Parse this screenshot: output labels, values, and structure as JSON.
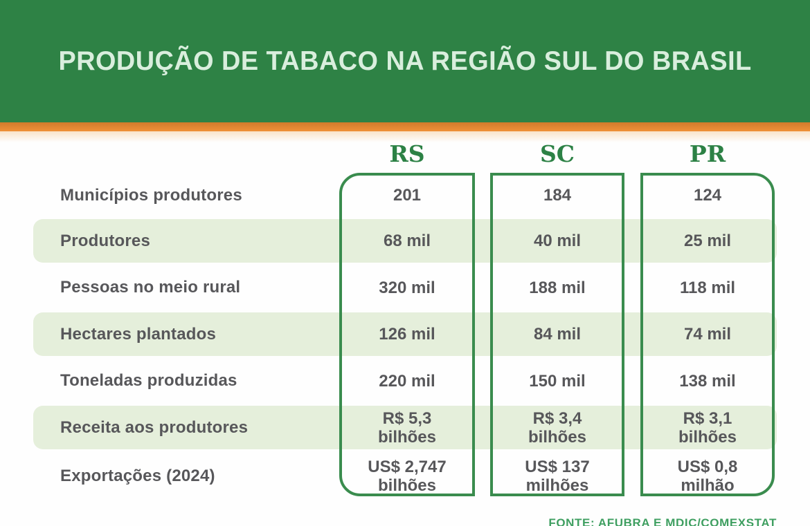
{
  "header": {
    "title": "PRODUÇÃO DE TABACO NA REGIÃO SUL DO BRASIL"
  },
  "columns": [
    "RS",
    "SC",
    "PR"
  ],
  "table": {
    "rows": [
      {
        "label": "Municípios produtores",
        "rs": "201",
        "sc": "184",
        "pr": "124"
      },
      {
        "label": "Produtores",
        "rs": "68 mil",
        "sc": "40 mil",
        "pr": "25 mil"
      },
      {
        "label": "Pessoas no meio rural",
        "rs": "320 mil",
        "sc": "188 mil",
        "pr": "118 mil"
      },
      {
        "label": "Hectares plantados",
        "rs": "126 mil",
        "sc": "84 mil",
        "pr": "74 mil"
      },
      {
        "label": "Toneladas produzidas",
        "rs": "220 mil",
        "sc": "150 mil",
        "pr": "138 mil"
      },
      {
        "label": "Receita aos produtores",
        "rs": "R$ 5,3\nbilhões",
        "sc": "R$ 3,4\nbilhões",
        "pr": "R$ 3,1\nbilhões"
      },
      {
        "label": "Exportações (2024)",
        "rs": "US$ 2,747\nbilhões",
        "sc": "US$ 137\nmilhões",
        "pr": "US$ 0,8\nmilhão"
      }
    ]
  },
  "footer": {
    "source": "FONTE: AFUBRA E MDIC/COMEXSTAT"
  },
  "colors": {
    "banner_green": "#2e8245",
    "stripe_orange": "#e5862f",
    "band_green": "#e5efdb",
    "box_border_green": "#3a8c4e",
    "title_mint": "#d9eedd",
    "column_header_green": "#2c8145",
    "text_gray": "#57575a",
    "source_green": "#3f9f61"
  },
  "chart_data": {
    "type": "table",
    "title": "PRODUÇÃO DE TABACO NA REGIÃO SUL DO BRASIL",
    "columns": [
      "RS",
      "SC",
      "PR"
    ],
    "rows": [
      {
        "label": "Municípios produtores",
        "values": [
          201,
          184,
          124
        ]
      },
      {
        "label": "Produtores",
        "values": [
          "68 mil",
          "40 mil",
          "25 mil"
        ]
      },
      {
        "label": "Pessoas no meio rural",
        "values": [
          "320 mil",
          "188 mil",
          "118 mil"
        ]
      },
      {
        "label": "Hectares plantados",
        "values": [
          "126 mil",
          "84 mil",
          "74 mil"
        ]
      },
      {
        "label": "Toneladas produzidas",
        "values": [
          "220 mil",
          "150 mil",
          "138 mil"
        ]
      },
      {
        "label": "Receita aos produtores",
        "values": [
          "R$ 5,3 bilhões",
          "R$ 3,4 bilhões",
          "R$ 3,1 bilhões"
        ]
      },
      {
        "label": "Exportações (2024)",
        "values": [
          "US$ 2,747 bilhões",
          "US$ 137 milhões",
          "US$ 0,8 milhão"
        ]
      }
    ],
    "source": "FONTE: AFUBRA E MDIC/COMEXSTAT",
    "legend_position": "none",
    "grid": "alternating-row-bands"
  }
}
